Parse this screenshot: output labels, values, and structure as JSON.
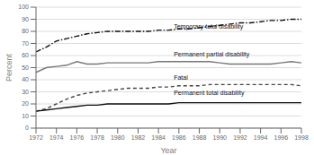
{
  "chart_data": {
    "type": "line",
    "xlabel": "Year",
    "ylabel": "Percent",
    "x": [
      1972,
      1973,
      1974,
      1975,
      1976,
      1977,
      1978,
      1979,
      1980,
      1981,
      1982,
      1983,
      1984,
      1985,
      1986,
      1987,
      1988,
      1989,
      1990,
      1991,
      1992,
      1993,
      1994,
      1995,
      1996,
      1997,
      1998
    ],
    "series": [
      {
        "color": "#111111",
        "line_style": "dashdot",
        "values": [
          63,
          67,
          72,
          74,
          76,
          78,
          79,
          80,
          80,
          80,
          80,
          80,
          81,
          81,
          82,
          82,
          83,
          84,
          85,
          86,
          87,
          87,
          88,
          89,
          89,
          90,
          90
        ]
      },
      {
        "color": "#777777",
        "line_style": "solid",
        "values": [
          46,
          50,
          51,
          52,
          55,
          53,
          53,
          54,
          54,
          54,
          54,
          54,
          55,
          55,
          55,
          55,
          55,
          55,
          54,
          53,
          53,
          53,
          53,
          53,
          54,
          55,
          54
        ]
      },
      {
        "color": "#444444",
        "line_style": "dashed",
        "values": [
          14,
          16,
          20,
          24,
          27,
          29,
          30,
          31,
          32,
          33,
          33,
          33,
          34,
          34,
          35,
          35,
          35,
          36,
          36,
          36,
          36,
          36,
          36,
          36,
          36,
          36,
          35
        ]
      },
      {
        "color": "#111111",
        "line_style": "solid",
        "values": [
          14,
          15,
          16,
          17,
          18,
          19,
          19,
          20,
          20,
          20,
          20,
          20,
          20,
          20,
          21,
          21,
          21,
          21,
          21,
          21,
          21,
          21,
          21,
          21,
          21,
          21,
          21
        ]
      }
    ],
    "annotations": [
      {
        "text": "Temporary total disability",
        "x": 1985.5,
        "y": 84
      },
      {
        "text": "Permanent partial disability",
        "x": 1985.5,
        "y": 61
      },
      {
        "text": "Fatal",
        "x": 1985.5,
        "y": 42
      },
      {
        "text": "Permanent total disability",
        "x": 1985.5,
        "y": 29
      }
    ],
    "xlim": [
      1972,
      1998
    ],
    "xticks": [
      1972,
      1974,
      1976,
      1978,
      1980,
      1982,
      1984,
      1986,
      1988,
      1990,
      1992,
      1994,
      1996,
      1998
    ],
    "ylim": [
      0,
      100
    ],
    "yticks": [
      0,
      10,
      20,
      30,
      40,
      50,
      60,
      70,
      80,
      90,
      100
    ],
    "grid": true
  }
}
